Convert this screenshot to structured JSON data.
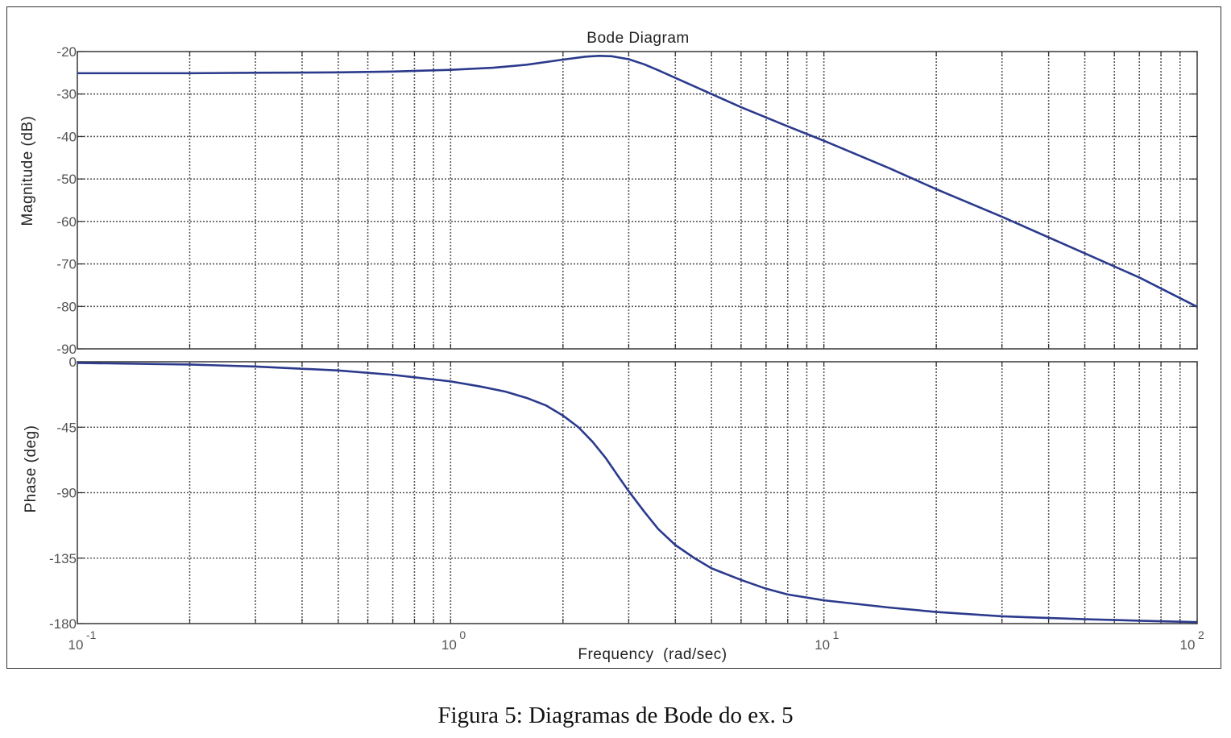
{
  "caption": "Figura 5: Diagramas de Bode do ex. 5",
  "chart_data": {
    "type": "line",
    "title": "Bode Diagram",
    "xlabel": "Frequency  (rad/sec)",
    "x_scale": "log",
    "xlim": [
      0.1,
      100
    ],
    "x_ticks": [
      {
        "value": 0.1,
        "base": "10",
        "exp": "-1"
      },
      {
        "value": 1,
        "base": "10",
        "exp": "0"
      },
      {
        "value": 10,
        "base": "10",
        "exp": "1"
      },
      {
        "value": 100,
        "base": "10",
        "exp": "2"
      }
    ],
    "grid": true,
    "line_color": "#2b3a8c",
    "panels": [
      {
        "name": "magnitude",
        "ylabel": "Magnitude (dB)",
        "ylim": [
          -90,
          -20
        ],
        "y_ticks": [
          -20,
          -30,
          -40,
          -50,
          -60,
          -70,
          -80,
          -90
        ],
        "series": [
          {
            "x": [
              0.1,
              0.2,
              0.3,
              0.5,
              0.7,
              1.0,
              1.3,
              1.6,
              2.0,
              2.3,
              2.5,
              2.7,
              3.0,
              3.3,
              3.6,
              4.0,
              5.0,
              6.0,
              8.0,
              10,
              15,
              20,
              30,
              50,
              70,
              100
            ],
            "y": [
              -25.1,
              -25.1,
              -25.0,
              -24.9,
              -24.7,
              -24.3,
              -23.8,
              -23.1,
              -21.9,
              -21.2,
              -21.0,
              -21.1,
              -21.8,
              -23.0,
              -24.4,
              -26.2,
              -30.0,
              -33.1,
              -37.6,
              -41.0,
              -47.5,
              -52.4,
              -58.9,
              -67.5,
              -73.2,
              -80.1
            ]
          }
        ]
      },
      {
        "name": "phase",
        "ylabel": "Phase (deg)",
        "ylim": [
          -180,
          0
        ],
        "y_ticks": [
          0,
          -45,
          -90,
          -135,
          -180
        ],
        "series": [
          {
            "x": [
              0.1,
              0.2,
              0.3,
              0.5,
              0.7,
              1.0,
              1.2,
              1.4,
              1.6,
              1.8,
              2.0,
              2.2,
              2.4,
              2.6,
              2.8,
              3.0,
              3.3,
              3.6,
              4.0,
              4.5,
              5.0,
              6.0,
              7.0,
              8.0,
              10,
              15,
              20,
              30,
              50,
              70,
              100
            ],
            "y": [
              -0.8,
              -1.9,
              -3.3,
              -6.0,
              -9.0,
              -13.5,
              -17.0,
              -20.5,
              -24.9,
              -30.0,
              -37.0,
              -45.0,
              -55.0,
              -66.0,
              -78.0,
              -89.0,
              -103.0,
              -115.0,
              -126.0,
              -135.0,
              -142.0,
              -150.0,
              -156.0,
              -160.0,
              -164.0,
              -169.0,
              -172.0,
              -175.0,
              -177.0,
              -178.0,
              -179.0
            ]
          }
        ]
      }
    ]
  }
}
